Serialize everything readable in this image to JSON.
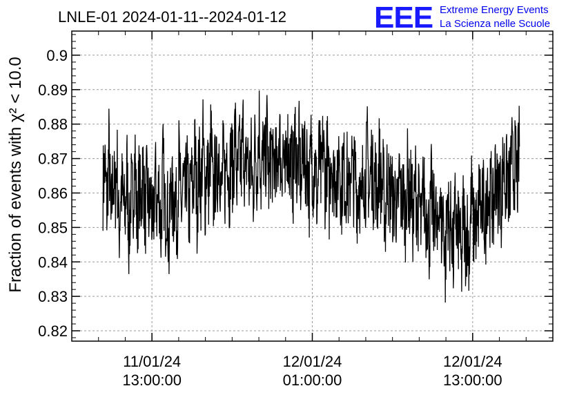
{
  "logo": {
    "mark": "EEE",
    "line1": "Extreme Energy Events",
    "line2": "La Scienza nelle Scuole",
    "color": "#1a1aff"
  },
  "chart_data": {
    "type": "line",
    "title": "LNLE-01 2024-01-11--2024-01-12",
    "ylabel": "Fraction of events with χ² < 10.0",
    "xlabel": "",
    "ylim": [
      0.817,
      0.907
    ],
    "yticks": [
      0.82,
      0.83,
      0.84,
      0.85,
      0.86,
      0.87,
      0.88,
      0.89,
      0.9
    ],
    "ytick_labels": [
      "0.82",
      "0.83",
      "0.84",
      "0.85",
      "0.86",
      "0.87",
      "0.88",
      "0.89",
      "0.9"
    ],
    "xlim": [
      "2024-01-11 07:00:00",
      "2024-01-12 19:00:00"
    ],
    "xticks": [
      {
        "time": "2024-01-11 13:00:00",
        "date": "11/01/24",
        "clock": "13:00:00"
      },
      {
        "time": "2024-01-12 01:00:00",
        "date": "12/01/24",
        "clock": "01:00:00"
      },
      {
        "time": "2024-01-12 13:00:00",
        "date": "12/01/24",
        "clock": "13:00:00"
      }
    ],
    "grid": true,
    "line_color": "#000000",
    "series": [
      {
        "x_start": "2024-01-11 09:20:00",
        "x_end": "2024-01-12 16:30:00",
        "values": [
          0.862,
          0.868,
          0.855,
          0.874,
          0.85,
          0.866,
          0.858,
          0.871,
          0.847,
          0.863,
          0.859,
          0.852,
          0.868,
          0.846,
          0.861,
          0.857,
          0.872,
          0.849,
          0.863,
          0.856,
          0.869,
          0.851,
          0.864,
          0.853,
          0.86,
          0.845,
          0.867,
          0.855,
          0.862,
          0.848,
          0.87,
          0.852,
          0.859,
          0.843,
          0.866,
          0.854,
          0.861,
          0.85,
          0.872,
          0.853,
          0.863,
          0.857,
          0.868,
          0.852,
          0.866,
          0.858,
          0.874,
          0.855,
          0.869,
          0.861,
          0.876,
          0.858,
          0.871,
          0.86,
          0.878,
          0.857,
          0.866,
          0.864,
          0.875,
          0.858,
          0.87,
          0.862,
          0.877,
          0.859,
          0.873,
          0.864,
          0.88,
          0.861,
          0.872,
          0.866,
          0.879,
          0.862,
          0.874,
          0.863,
          0.871,
          0.859,
          0.876,
          0.865,
          0.882,
          0.862,
          0.873,
          0.867,
          0.879,
          0.86,
          0.875,
          0.865,
          0.872,
          0.862,
          0.88,
          0.866,
          0.874,
          0.861,
          0.877,
          0.868,
          0.871,
          0.863,
          0.878,
          0.865,
          0.874,
          0.86,
          0.876,
          0.866,
          0.871,
          0.859,
          0.875,
          0.864,
          0.869,
          0.856,
          0.873,
          0.862,
          0.876,
          0.861,
          0.872,
          0.858,
          0.874,
          0.863,
          0.868,
          0.86,
          0.875,
          0.857,
          0.87,
          0.861,
          0.866,
          0.856,
          0.872,
          0.862,
          0.867,
          0.858,
          0.864,
          0.853,
          0.869,
          0.861,
          0.874,
          0.858,
          0.87,
          0.862,
          0.866,
          0.857,
          0.871,
          0.86,
          0.864,
          0.851,
          0.868,
          0.858,
          0.863,
          0.855,
          0.861,
          0.85,
          0.866,
          0.857,
          0.86,
          0.852,
          0.867,
          0.858,
          0.862,
          0.849,
          0.865,
          0.853,
          0.859,
          0.847,
          0.864,
          0.852,
          0.856,
          0.846,
          0.862,
          0.851,
          0.858,
          0.843,
          0.861,
          0.849,
          0.855,
          0.838,
          0.86,
          0.848,
          0.853,
          0.84,
          0.858,
          0.846,
          0.852,
          0.836,
          0.857,
          0.845,
          0.85,
          0.842,
          0.861,
          0.849,
          0.854,
          0.845,
          0.863,
          0.852,
          0.858,
          0.848,
          0.866,
          0.855,
          0.862,
          0.852,
          0.868,
          0.859,
          0.864,
          0.856,
          0.871,
          0.861,
          0.867,
          0.858,
          0.873,
          0.864,
          0.87,
          0.863,
          0.875
        ]
      }
    ]
  }
}
